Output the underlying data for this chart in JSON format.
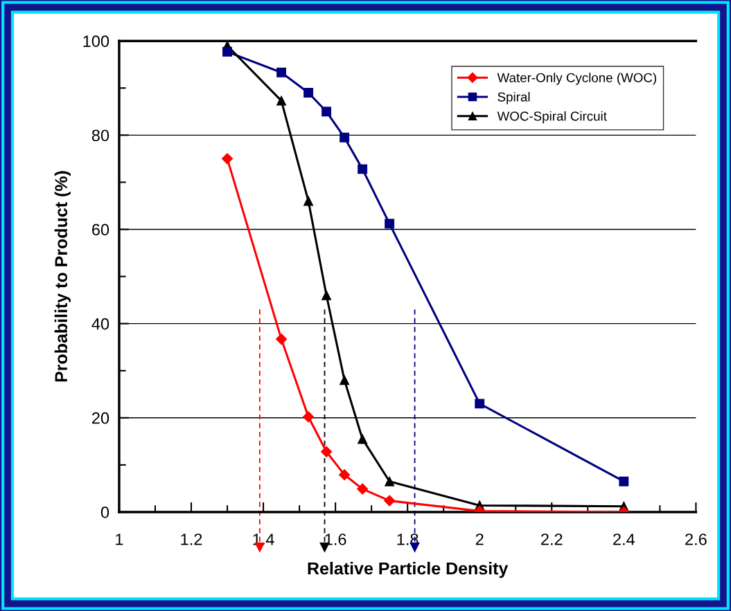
{
  "chart_data": {
    "type": "line",
    "xlabel": "Relative Particle Density",
    "ylabel": "Probability to Product (%)",
    "x": [
      1.3,
      1.45,
      1.525,
      1.575,
      1.625,
      1.675,
      1.75,
      2,
      2.4
    ],
    "series": [
      {
        "name": "Water-Only Cyclone (WOC)",
        "color": "#ff0000",
        "marker": "diamond",
        "values": [
          75,
          36.7,
          20.2,
          12.8,
          7.9,
          4.9,
          2.4,
          0.2,
          0
        ]
      },
      {
        "name": "Spiral",
        "color": "#000080",
        "marker": "square",
        "values": [
          97.7,
          93.3,
          89,
          85,
          79.5,
          72.8,
          61.2,
          23,
          6.5
        ]
      },
      {
        "name": "WOC-Spiral Circuit",
        "color": "#000000",
        "marker": "triangle",
        "values": [
          99,
          87.3,
          66,
          46,
          28,
          15.5,
          6.5,
          1.4,
          1.2
        ]
      }
    ],
    "xlim": [
      1,
      2.6
    ],
    "xticks": [
      1,
      1.2,
      1.4,
      1.6,
      1.8,
      2,
      2.2,
      2.4,
      2.6
    ],
    "ylim": [
      0,
      100
    ],
    "yticks": [
      0,
      20,
      40,
      60,
      80,
      100
    ],
    "grid": "y",
    "legend": "top right",
    "line_style": "solid",
    "ref_lines": [
      {
        "axis": "x",
        "value": 1.39,
        "color": "#ff0000",
        "line_style": "dashed"
      },
      {
        "axis": "x",
        "value": 1.57,
        "color": "#000000",
        "line_style": "dashed"
      },
      {
        "axis": "x",
        "value": 1.82,
        "color": "#000080",
        "line_style": "dashed"
      }
    ]
  }
}
